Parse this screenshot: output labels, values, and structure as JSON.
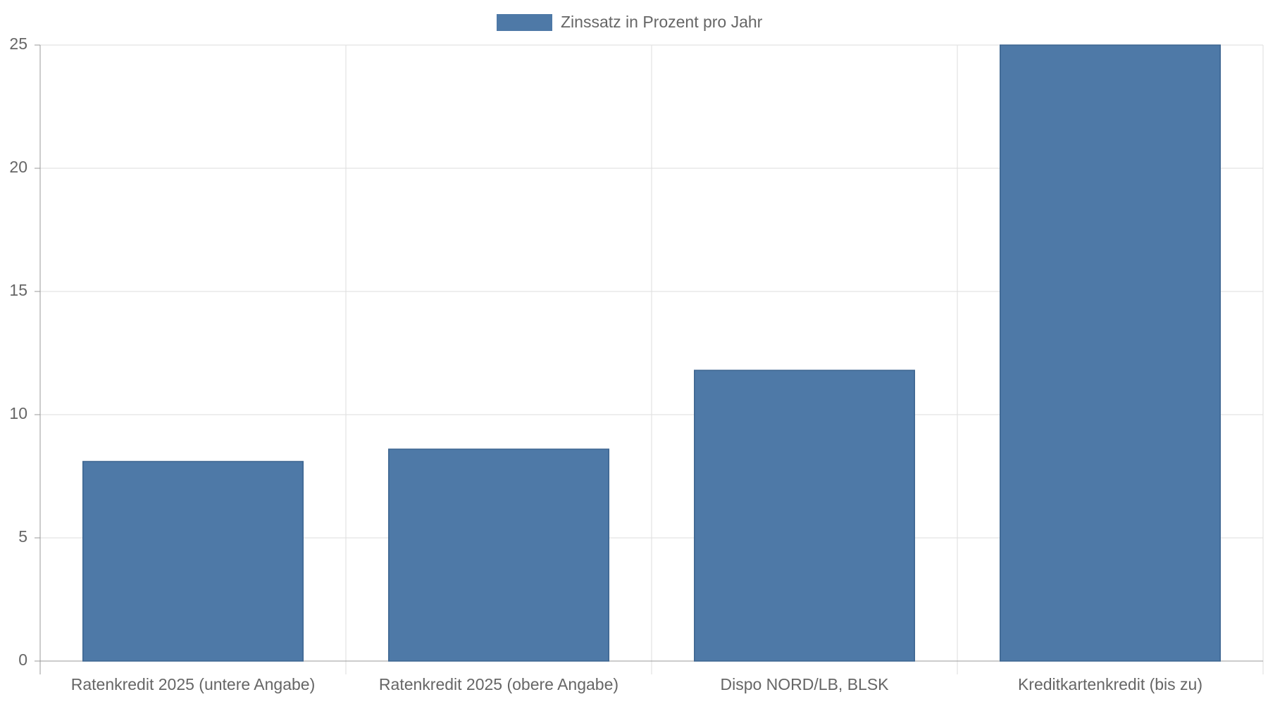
{
  "chart_data": {
    "type": "bar",
    "categories": [
      "Ratenkredit 2025 (untere Angabe)",
      "Ratenkredit 2025 (obere Angabe)",
      "Dispo NORD/LB, BLSK",
      "Kreditkartenkredit (bis zu)"
    ],
    "series": [
      {
        "name": "Zinssatz in Prozent pro Jahr",
        "color": "#4e79a7",
        "values": [
          8.1,
          8.6,
          11.8,
          25
        ]
      }
    ],
    "ylim": [
      0,
      25
    ],
    "yticks": [
      0,
      5,
      10,
      15,
      20,
      25
    ],
    "grid": true,
    "legend": "top"
  }
}
